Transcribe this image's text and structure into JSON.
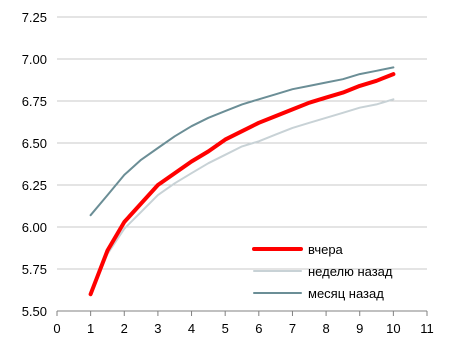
{
  "chart_data": {
    "type": "line",
    "title": "",
    "xlabel": "",
    "ylabel": "",
    "xlim": [
      0,
      11
    ],
    "ylim": [
      5.5,
      7.25
    ],
    "xticks": [
      "0",
      "1",
      "2",
      "3",
      "4",
      "5",
      "6",
      "7",
      "8",
      "9",
      "10",
      "11"
    ],
    "yticks": [
      "5.50",
      "5.75",
      "6.00",
      "6.25",
      "6.50",
      "6.75",
      "7.00",
      "7.25"
    ],
    "grid": "horizontal",
    "legend": "bottom-right",
    "x": [
      1,
      1.5,
      2,
      2.5,
      3,
      3.5,
      4,
      4.5,
      5,
      5.5,
      6,
      6.5,
      7,
      7.5,
      8,
      8.5,
      9,
      9.5,
      10
    ],
    "series": [
      {
        "name": "вчера",
        "color": "#ff0000",
        "values": [
          5.6,
          5.86,
          6.03,
          6.14,
          6.25,
          6.32,
          6.39,
          6.45,
          6.52,
          6.57,
          6.62,
          6.66,
          6.7,
          6.74,
          6.77,
          6.8,
          6.84,
          6.87,
          6.91
        ]
      },
      {
        "name": "неделю назад",
        "color": "#c8d2d6",
        "values": [
          5.61,
          5.84,
          5.99,
          6.09,
          6.19,
          6.26,
          6.32,
          6.38,
          6.43,
          6.48,
          6.51,
          6.55,
          6.59,
          6.62,
          6.65,
          6.68,
          6.71,
          6.73,
          6.76
        ]
      },
      {
        "name": "месяц назад",
        "color": "#6b8e96",
        "values": [
          6.07,
          6.19,
          6.31,
          6.4,
          6.47,
          6.54,
          6.6,
          6.65,
          6.69,
          6.73,
          6.76,
          6.79,
          6.82,
          6.84,
          6.86,
          6.88,
          6.91,
          6.93,
          6.95
        ]
      }
    ]
  }
}
